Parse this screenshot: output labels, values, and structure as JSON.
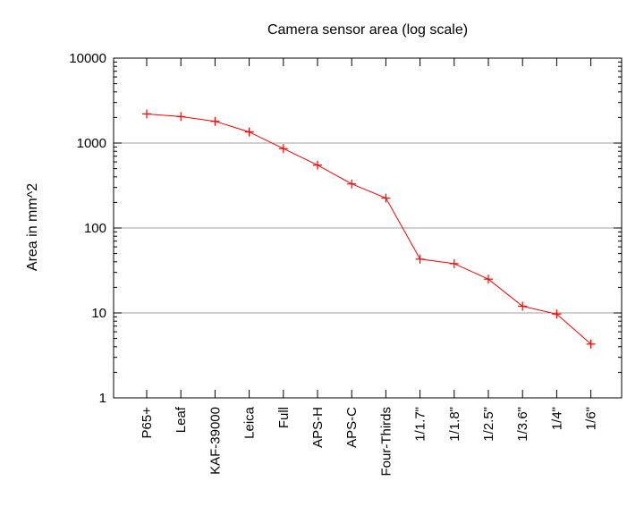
{
  "chart_data": {
    "type": "line",
    "title": "Camera sensor area (log scale)",
    "xlabel": "",
    "ylabel": "Area in mm^2",
    "yscale": "log",
    "ylim": [
      1,
      10000
    ],
    "yticks": [
      1,
      10,
      100,
      1000,
      10000
    ],
    "ytick_labels": [
      "1",
      "10",
      "100",
      "1000",
      "10000"
    ],
    "grid": "horizontal major lines",
    "legend": "none",
    "categories": [
      "P65+",
      "Leaf",
      "KAF-39000",
      "Leica",
      "Full",
      "APS-H",
      "APS-C",
      "Four-Thirds",
      "1/1.7\"",
      "1/1.8\"",
      "1/2.5\"",
      "1/3.6\"",
      "1/4\"",
      "1/6\""
    ],
    "series": [
      {
        "color": "#ff0000",
        "marker": "plus",
        "values": [
          2200,
          2050,
          1800,
          1350,
          860,
          550,
          330,
          225,
          43,
          38,
          25,
          12,
          9.7,
          4.3
        ]
      }
    ]
  }
}
